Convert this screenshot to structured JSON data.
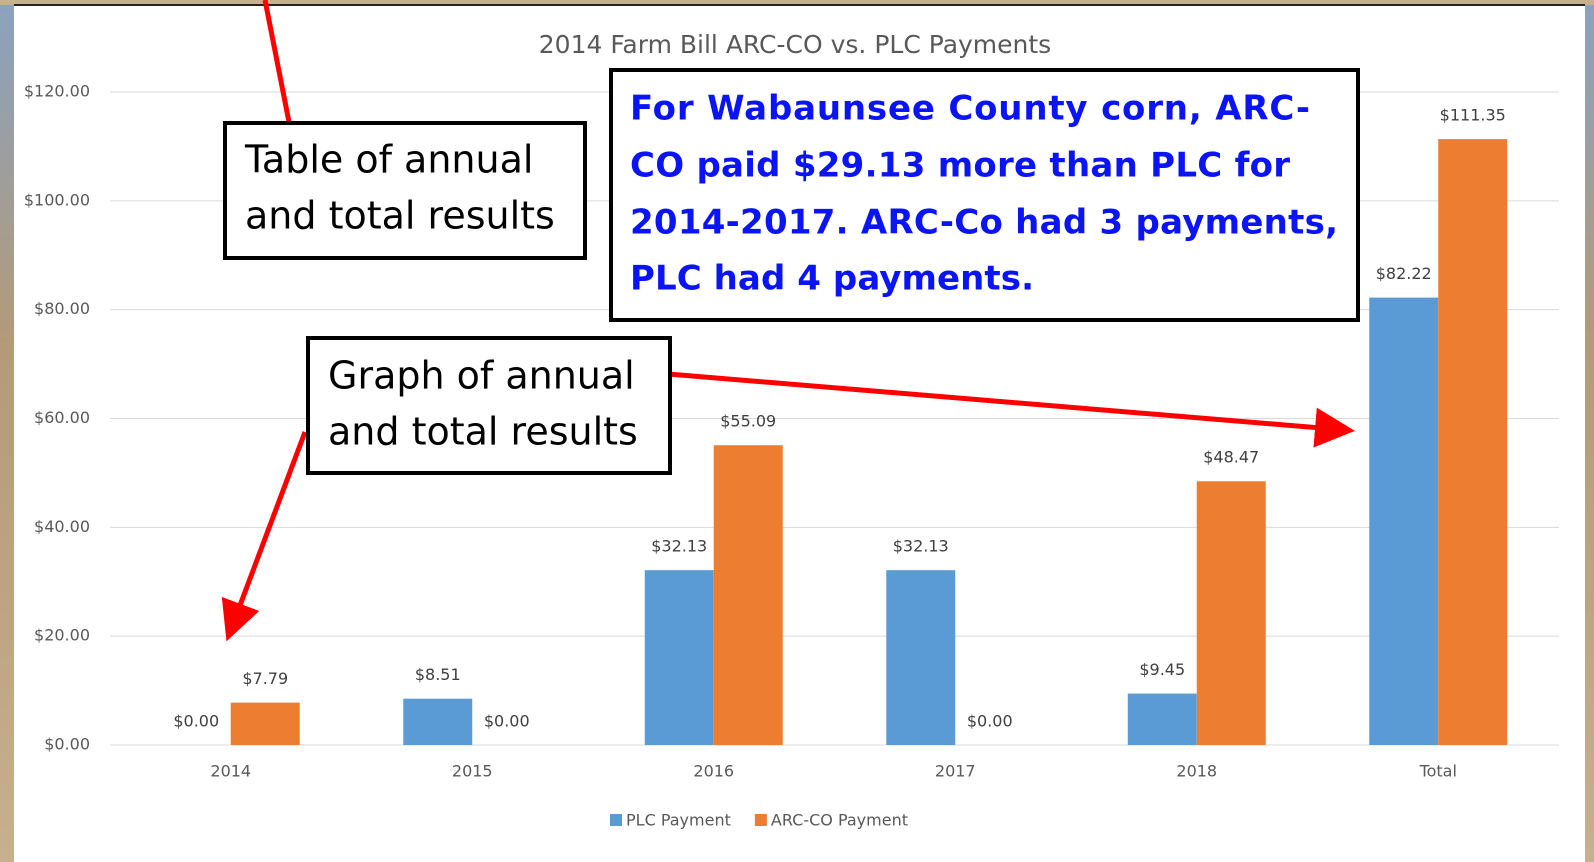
{
  "chart_data": {
    "type": "bar",
    "title": "2014 Farm Bill ARC-CO vs. PLC Payments",
    "categories": [
      "2014",
      "2015",
      "2016",
      "2017",
      "2018",
      "Total"
    ],
    "series": [
      {
        "name": "PLC Payment",
        "color": "#5b9bd5",
        "values": [
          0,
          8.51,
          32.13,
          32.13,
          9.45,
          82.22
        ],
        "value_labels": [
          "$0.00",
          "$8.51",
          "$32.13",
          "$32.13",
          "$9.45",
          "$82.22"
        ]
      },
      {
        "name": "ARC-CO Payment",
        "color": "#ed7d31",
        "values": [
          7.79,
          0,
          55.09,
          0,
          48.47,
          111.35
        ],
        "value_labels": [
          "$7.79",
          "$0.00",
          "$55.09",
          "$0.00",
          "$48.47",
          "$111.35"
        ]
      }
    ],
    "ylim": [
      0,
      120
    ],
    "yticks": [
      {
        "value": 0,
        "label": "$0.00"
      },
      {
        "value": 20,
        "label": "$20.00"
      },
      {
        "value": 40,
        "label": "$40.00"
      },
      {
        "value": 60,
        "label": "$60.00"
      },
      {
        "value": 80,
        "label": "$80.00"
      },
      {
        "value": 100,
        "label": "$100.00"
      },
      {
        "value": 120,
        "label": "$120.00"
      }
    ],
    "grid": true,
    "legend": "bottom",
    "annotations": [
      {
        "lines": [
          "Table of annual",
          "and total results"
        ]
      },
      {
        "lines": [
          "For Wabaunsee County corn, ARC-",
          "CO paid $29.13 more than PLC for",
          "2014-2017. ARC-Co had 3 payments,",
          "PLC had 4 payments."
        ]
      },
      {
        "lines": [
          "Graph of annual",
          "and total results"
        ]
      }
    ]
  }
}
